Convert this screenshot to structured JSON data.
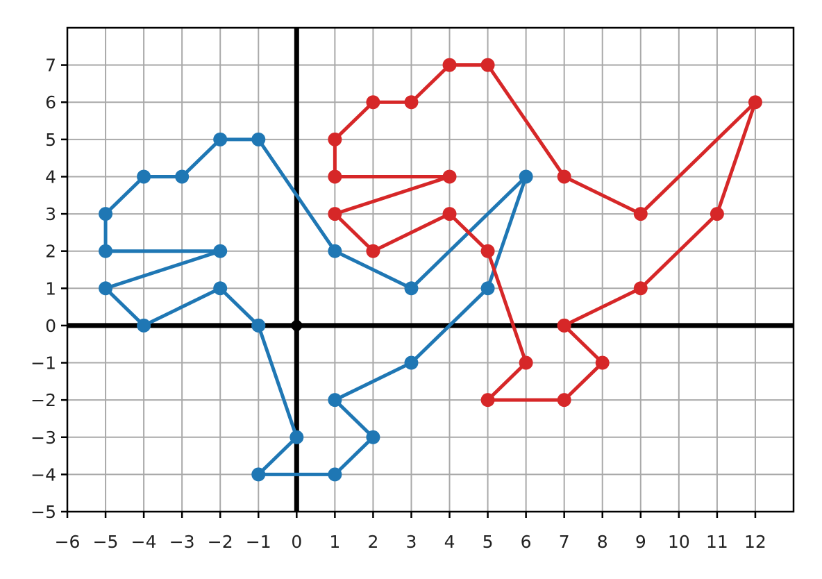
{
  "chart_data": {
    "type": "line",
    "title": "",
    "xlabel": "",
    "ylabel": "",
    "xlim": [
      -6,
      13
    ],
    "ylim": [
      -5,
      8
    ],
    "x_ticks": [
      -6,
      -5,
      -4,
      -3,
      -2,
      -1,
      0,
      1,
      2,
      3,
      4,
      5,
      6,
      7,
      8,
      9,
      10,
      11,
      12
    ],
    "y_ticks": [
      -5,
      -4,
      -3,
      -2,
      -1,
      0,
      1,
      2,
      3,
      4,
      5,
      6,
      7
    ],
    "x_tick_labels": [
      "−6",
      "−5",
      "−4",
      "−3",
      "−2",
      "−1",
      "0",
      "1",
      "2",
      "3",
      "4",
      "5",
      "6",
      "7",
      "8",
      "9",
      "10",
      "11",
      "12"
    ],
    "y_tick_labels": [
      "−5",
      "−4",
      "−3",
      "−2",
      "−1",
      "0",
      "1",
      "2",
      "3",
      "4",
      "5",
      "6",
      "7"
    ],
    "grid": true,
    "origin_marker": [
      0,
      0
    ],
    "series": [
      {
        "color": "#1f77b4",
        "points": [
          [
            -1,
            0
          ],
          [
            -2,
            1
          ],
          [
            -4,
            0
          ],
          [
            -5,
            1
          ],
          [
            -2,
            2
          ],
          [
            -5,
            2
          ],
          [
            -5,
            3
          ],
          [
            -4,
            4
          ],
          [
            -3,
            4
          ],
          [
            -2,
            5
          ],
          [
            -1,
            5
          ],
          [
            1,
            2
          ],
          [
            3,
            1
          ],
          [
            6,
            4
          ],
          [
            5,
            1
          ],
          [
            3,
            -1
          ],
          [
            1,
            -2
          ],
          [
            2,
            -3
          ],
          [
            1,
            -4
          ],
          [
            -1,
            -4
          ],
          [
            0,
            -3
          ],
          [
            -1,
            0
          ]
        ]
      },
      {
        "color": "#d62728",
        "points": [
          [
            7,
            0
          ],
          [
            9,
            1
          ],
          [
            11,
            3
          ],
          [
            12,
            6
          ],
          [
            9,
            3
          ],
          [
            7,
            4
          ],
          [
            5,
            7
          ],
          [
            4,
            7
          ],
          [
            3,
            6
          ],
          [
            2,
            6
          ],
          [
            1,
            5
          ],
          [
            1,
            4
          ],
          [
            4,
            4
          ],
          [
            1,
            3
          ],
          [
            2,
            2
          ],
          [
            4,
            3
          ],
          [
            5,
            2
          ],
          [
            6,
            -1
          ],
          [
            5,
            -2
          ],
          [
            7,
            -2
          ],
          [
            8,
            -1
          ],
          [
            7,
            0
          ]
        ]
      }
    ]
  }
}
